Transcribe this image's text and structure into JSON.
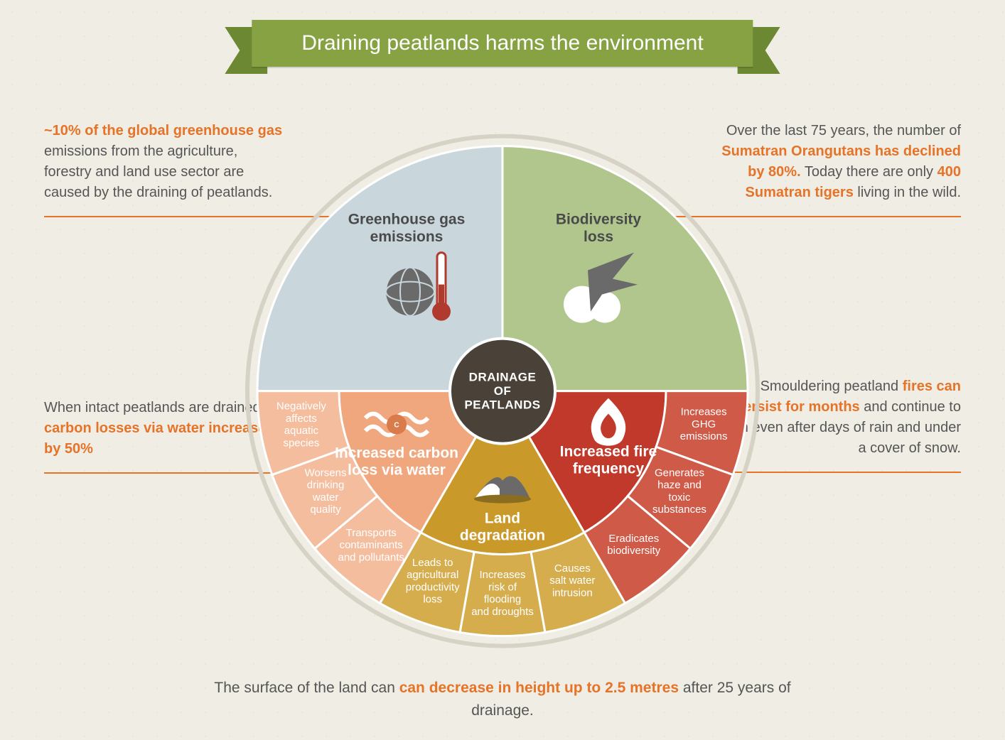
{
  "banner": {
    "title": "Draining peatlands harms the environment"
  },
  "colors": {
    "banner": "#86a242",
    "bannerDark": "#6c8832",
    "accent": "#e57328",
    "hubFill": "#4a4238",
    "ringStroke": "#d6d2c5",
    "segBlue": "#c9d7dd",
    "segGreen": "#b1c68d",
    "segPeachA": "#f0a77e",
    "segPeachB": "#f4bd9e",
    "segRedA": "#c0392b",
    "segRedB": "#cf5a48",
    "segGoldA": "#c99a2a",
    "segGoldB": "#d5ad4d"
  },
  "captions": {
    "topLeft": {
      "pre": "",
      "hl1": "~10% of the global greenhouse gas",
      "post1": " emissions from the agriculture, forestry and land use sector are caused by the draining of peatlands."
    },
    "topRight": {
      "pre": "Over the last 75 years, the number of ",
      "hl1": "Sumatran Orangutans has declined by 80%.",
      "mid": " Today there are only ",
      "hl2": "400 Sumatran tigers",
      "post": " living in the wild."
    },
    "midLeft": {
      "pre": "When intact peatlands are drained ",
      "hl1": "carbon losses via water increase by 50%"
    },
    "midRight": {
      "pre": "Smouldering peatland ",
      "hl1": "fires can persist for months",
      "post": " and continue to burn even after days of rain and under a cover of snow."
    },
    "bottom": {
      "pre": "The surface of the land can ",
      "hl1": "can decrease in height up to 2.5 metres",
      "post": " after 25 years of drainage."
    }
  },
  "hub": {
    "line1": "DRAINAGE",
    "line2": "OF",
    "line3": "PEATLANDS"
  },
  "segments": {
    "ghg": {
      "title1": "Greenhouse gas",
      "title2": "emissions"
    },
    "bio": {
      "title1": "Biodiversity",
      "title2": "loss"
    },
    "fire": {
      "title1": "Increased fire",
      "title2": "frequency",
      "subs": [
        {
          "l1": "Increases",
          "l2": "GHG",
          "l3": "emissions"
        },
        {
          "l1": "Generates",
          "l2": "haze and",
          "l3": "toxic",
          "l4": "substances"
        },
        {
          "l1": "Eradicates",
          "l2": "biodiversity"
        }
      ]
    },
    "land": {
      "title1": "Land",
      "title2": "degradation",
      "subs": [
        {
          "l1": "Causes",
          "l2": "salt water",
          "l3": "intrusion"
        },
        {
          "l1": "Increases",
          "l2": "risk of",
          "l3": "flooding",
          "l4": "and droughts"
        },
        {
          "l1": "Leads to",
          "l2": "agricultural",
          "l3": "productivity",
          "l4": "loss"
        }
      ]
    },
    "water": {
      "title1": "Increased carbon",
      "title2": "loss via water",
      "subs": [
        {
          "l1": "Transports",
          "l2": "contaminants",
          "l3": "and pollutants"
        },
        {
          "l1": "Worsens",
          "l2": "drinking",
          "l3": "water",
          "l4": "quality"
        },
        {
          "l1": "Negatively",
          "l2": "affects",
          "l3": "aquatic",
          "l4": "species"
        }
      ]
    }
  },
  "geometry": {
    "outerR": 345,
    "innerR": 230,
    "hubR": 74,
    "topAngles": [
      180,
      360
    ],
    "bottomAngles": [
      0,
      60,
      120,
      180
    ],
    "subAngles": {
      "fire": [
        0,
        20,
        40,
        60
      ],
      "land": [
        60,
        80,
        100,
        120
      ],
      "water": [
        120,
        140,
        160,
        180
      ]
    }
  }
}
